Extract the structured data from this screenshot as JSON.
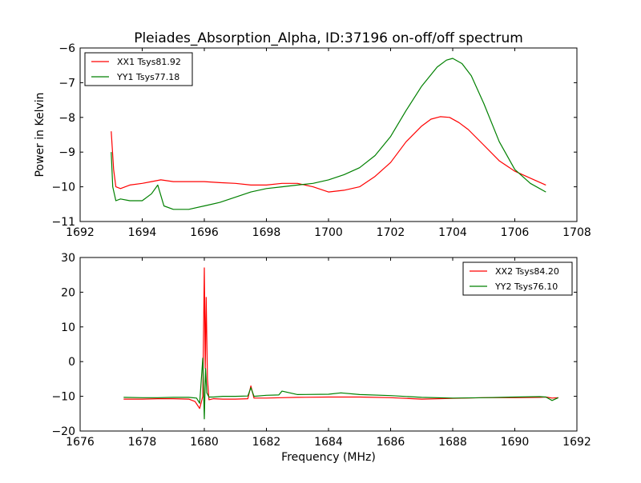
{
  "figure": {
    "title": "Pleiades_Absorption_Alpha, ID:37196 on-off/off spectrum"
  },
  "chart_data": [
    {
      "type": "line",
      "ylabel": "Power in Kelvin",
      "xlabel": "",
      "xlim": [
        1692,
        1708
      ],
      "ylim": [
        -11,
        -6
      ],
      "x_ticks": [
        "1692",
        "1694",
        "1696",
        "1698",
        "1700",
        "1702",
        "1704",
        "1706",
        "1708"
      ],
      "y_ticks": [
        "−6",
        "−7",
        "−8",
        "−9",
        "−10",
        "−11"
      ],
      "legend_position": "top-left",
      "grid": false,
      "series": [
        {
          "name": "XX1 Tsys81.92",
          "color": "#ff0000",
          "x": [
            1693.0,
            1693.08,
            1693.15,
            1693.3,
            1693.6,
            1694.0,
            1694.3,
            1694.6,
            1695.0,
            1695.5,
            1696.0,
            1696.5,
            1697.0,
            1697.5,
            1698.0,
            1698.5,
            1699.0,
            1699.5,
            1700.0,
            1700.5,
            1701.0,
            1701.5,
            1702.0,
            1702.5,
            1703.0,
            1703.3,
            1703.6,
            1703.9,
            1704.2,
            1704.5,
            1705.0,
            1705.5,
            1706.0,
            1706.5,
            1707.0
          ],
          "y": [
            -8.4,
            -9.5,
            -10.0,
            -10.05,
            -9.95,
            -9.9,
            -9.85,
            -9.8,
            -9.85,
            -9.85,
            -9.85,
            -9.88,
            -9.9,
            -9.95,
            -9.95,
            -9.9,
            -9.9,
            -10.0,
            -10.15,
            -10.1,
            -10.0,
            -9.7,
            -9.3,
            -8.7,
            -8.25,
            -8.05,
            -7.98,
            -8.0,
            -8.15,
            -8.35,
            -8.8,
            -9.25,
            -9.55,
            -9.75,
            -9.95
          ]
        },
        {
          "name": "YY1 Tsys77.18",
          "color": "#008000",
          "x": [
            1693.0,
            1693.05,
            1693.15,
            1693.3,
            1693.6,
            1694.0,
            1694.3,
            1694.5,
            1694.7,
            1695.0,
            1695.5,
            1696.0,
            1696.5,
            1697.0,
            1697.5,
            1698.0,
            1698.5,
            1699.0,
            1699.5,
            1700.0,
            1700.5,
            1701.0,
            1701.5,
            1702.0,
            1702.5,
            1703.0,
            1703.5,
            1703.8,
            1704.0,
            1704.3,
            1704.6,
            1705.0,
            1705.5,
            1706.0,
            1706.5,
            1707.0
          ],
          "y": [
            -9.0,
            -10.0,
            -10.4,
            -10.35,
            -10.4,
            -10.4,
            -10.2,
            -9.95,
            -10.55,
            -10.65,
            -10.65,
            -10.55,
            -10.45,
            -10.3,
            -10.15,
            -10.05,
            -10.0,
            -9.95,
            -9.9,
            -9.8,
            -9.65,
            -9.45,
            -9.1,
            -8.55,
            -7.8,
            -7.1,
            -6.55,
            -6.35,
            -6.3,
            -6.45,
            -6.8,
            -7.6,
            -8.7,
            -9.5,
            -9.9,
            -10.15
          ]
        }
      ]
    },
    {
      "type": "line",
      "ylabel": "",
      "xlabel": "Frequency (MHz)",
      "xlim": [
        1676,
        1692
      ],
      "ylim": [
        -20,
        30
      ],
      "x_ticks": [
        "1676",
        "1678",
        "1680",
        "1682",
        "1684",
        "1686",
        "1688",
        "1690",
        "1692"
      ],
      "y_ticks": [
        "30",
        "20",
        "10",
        "0",
        "−10",
        "−20"
      ],
      "legend_position": "top-right",
      "grid": false,
      "series": [
        {
          "name": "XX2 Tsys84.20",
          "color": "#ff0000",
          "x": [
            1677.4,
            1678.0,
            1678.5,
            1679.0,
            1679.5,
            1679.7,
            1679.85,
            1679.95,
            1680.0,
            1680.03,
            1680.06,
            1680.1,
            1680.15,
            1680.3,
            1680.6,
            1681.0,
            1681.4,
            1681.5,
            1681.6,
            1682.0,
            1682.5,
            1683.0,
            1684.0,
            1685.0,
            1686.0,
            1687.0,
            1688.0,
            1689.0,
            1690.0,
            1690.8,
            1691.0,
            1691.2,
            1691.4
          ],
          "y": [
            -10.8,
            -10.8,
            -10.7,
            -10.7,
            -10.8,
            -11.5,
            -13.5,
            -10.0,
            27.0,
            -2.0,
            18.5,
            -5.0,
            -11.0,
            -10.7,
            -10.8,
            -10.8,
            -10.7,
            -7.0,
            -10.5,
            -10.5,
            -10.4,
            -10.3,
            -10.2,
            -10.2,
            -10.4,
            -10.8,
            -10.6,
            -10.4,
            -10.4,
            -10.3,
            -10.2,
            -10.5,
            -10.4
          ]
        },
        {
          "name": "YY2 Tsys76.10",
          "color": "#008000",
          "x": [
            1677.4,
            1678.0,
            1678.5,
            1679.0,
            1679.5,
            1679.75,
            1679.85,
            1679.95,
            1680.0,
            1680.04,
            1680.08,
            1680.15,
            1680.3,
            1680.6,
            1681.0,
            1681.4,
            1681.5,
            1681.6,
            1682.0,
            1682.4,
            1682.5,
            1683.0,
            1684.0,
            1684.4,
            1685.0,
            1686.0,
            1687.0,
            1688.0,
            1689.0,
            1690.0,
            1690.8,
            1691.0,
            1691.2,
            1691.4
          ],
          "y": [
            -10.3,
            -10.4,
            -10.4,
            -10.3,
            -10.3,
            -10.5,
            -12.0,
            1.0,
            -16.5,
            -2.0,
            -9.0,
            -10.2,
            -10.2,
            -10.0,
            -10.0,
            -9.9,
            -7.5,
            -10.0,
            -9.7,
            -9.6,
            -8.5,
            -9.5,
            -9.4,
            -9.0,
            -9.5,
            -9.8,
            -10.3,
            -10.5,
            -10.4,
            -10.2,
            -10.1,
            -10.2,
            -11.2,
            -10.4
          ]
        }
      ]
    }
  ]
}
